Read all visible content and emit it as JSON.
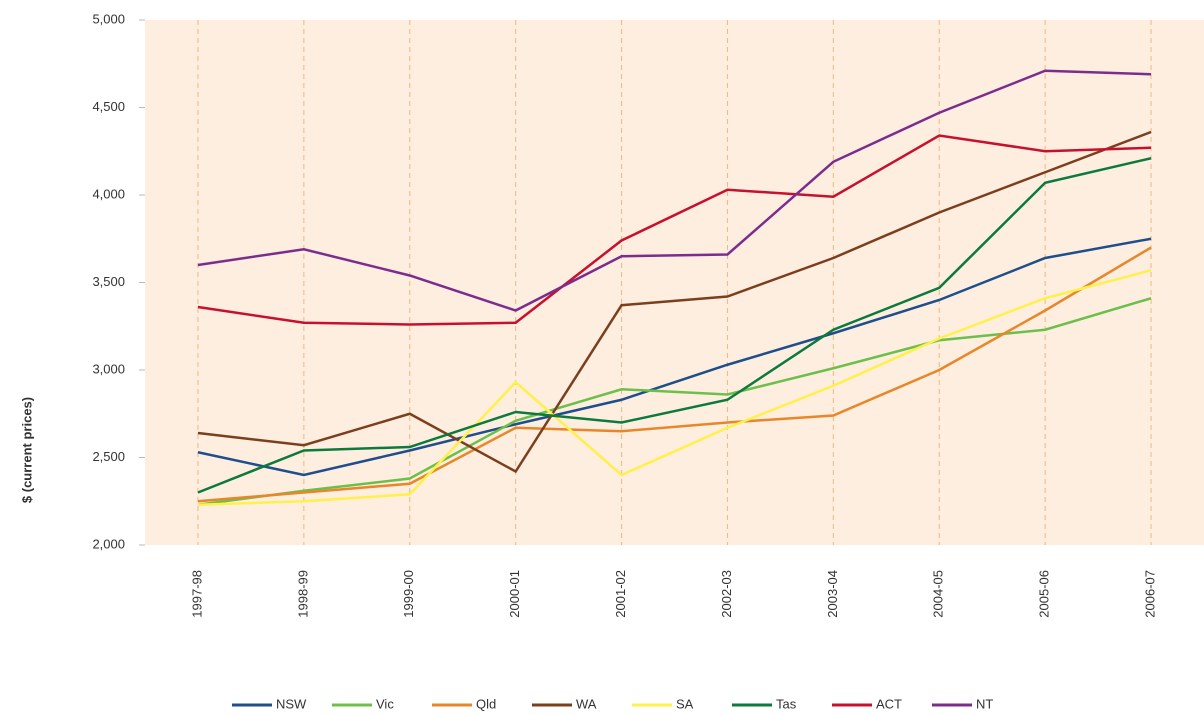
{
  "chart_data": {
    "type": "line",
    "y_label": "$ (current prices)",
    "categories": [
      "1997-98",
      "1998-99",
      "1999-00",
      "2000-01",
      "2001-02",
      "2002-03",
      "2003-04",
      "2004-05",
      "2005-06",
      "2006-07"
    ],
    "ylim": [
      2000,
      5000
    ],
    "yticks": [
      {
        "value": 2000,
        "label": "2,000"
      },
      {
        "value": 2500,
        "label": "2,500"
      },
      {
        "value": 3000,
        "label": "3,000"
      },
      {
        "value": 3500,
        "label": "3,500"
      },
      {
        "value": 4000,
        "label": "4,000"
      },
      {
        "value": 4500,
        "label": "4,500"
      },
      {
        "value": 5000,
        "label": "5,000"
      }
    ],
    "grid": true,
    "legend": "bottom",
    "series": [
      {
        "name": "NSW",
        "color": "#1f4e8c",
        "values": [
          2530,
          2400,
          2540,
          2690,
          2830,
          3030,
          3210,
          3400,
          3640,
          3750
        ]
      },
      {
        "name": "Vic",
        "color": "#6cc04a",
        "values": [
          2230,
          2310,
          2380,
          2710,
          2890,
          2860,
          3010,
          3170,
          3230,
          3410
        ]
      },
      {
        "name": "Qld",
        "color": "#e8862a",
        "values": [
          2250,
          2300,
          2350,
          2670,
          2650,
          2700,
          2740,
          3000,
          3340,
          3700
        ]
      },
      {
        "name": "WA",
        "color": "#7b3f1e",
        "values": [
          2640,
          2570,
          2750,
          2420,
          3370,
          3420,
          3640,
          3900,
          4130,
          4360
        ]
      },
      {
        "name": "SA",
        "color": "#fff04a",
        "values": [
          2230,
          2250,
          2290,
          2930,
          2400,
          2670,
          2910,
          3180,
          3410,
          3570
        ]
      },
      {
        "name": "Tas",
        "color": "#0c7a3c",
        "values": [
          2300,
          2540,
          2560,
          2760,
          2700,
          2830,
          3230,
          3470,
          4070,
          4210
        ]
      },
      {
        "name": "ACT",
        "color": "#c8102e",
        "values": [
          3360,
          3270,
          3260,
          3270,
          3740,
          4030,
          3990,
          4340,
          4250,
          4270
        ]
      },
      {
        "name": "NT",
        "color": "#7b2d8e",
        "values": [
          3600,
          3690,
          3540,
          3340,
          3650,
          3660,
          4190,
          4470,
          4710,
          4690
        ]
      }
    ]
  }
}
